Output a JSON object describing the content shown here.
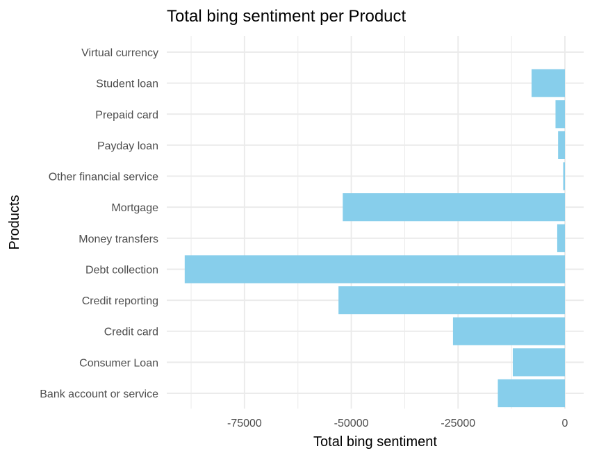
{
  "chart_data": {
    "type": "bar",
    "orientation": "horizontal",
    "title": "Total bing sentiment per Product",
    "xlabel": "Total bing sentiment",
    "ylabel": "Products",
    "categories": [
      "Bank account or service",
      "Consumer Loan",
      "Credit card",
      "Credit reporting",
      "Debt collection",
      "Money transfers",
      "Mortgage",
      "Other financial service",
      "Payday loan",
      "Prepaid card",
      "Student loan",
      "Virtual currency"
    ],
    "values": [
      -15700,
      -12200,
      -26200,
      -53000,
      -89000,
      -1800,
      -52000,
      -400,
      -1600,
      -2200,
      -7800,
      0
    ],
    "xlim": [
      -89000,
      0
    ],
    "xticks": [
      {
        "value": -75000,
        "label": "-75000"
      },
      {
        "value": -50000,
        "label": "-50000"
      },
      {
        "value": -25000,
        "label": "-25000"
      },
      {
        "value": 0,
        "label": "0"
      }
    ],
    "grid": true,
    "legend": "none",
    "bar_color": "#87CEEB",
    "grid_color": "#ebebeb"
  }
}
